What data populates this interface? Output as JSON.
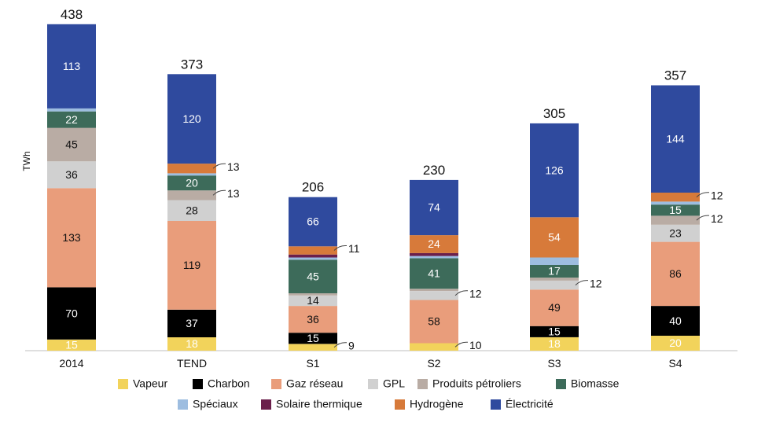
{
  "chart_data": {
    "type": "bar",
    "stacked": true,
    "ylabel": "TWh",
    "ylim": [
      0,
      450
    ],
    "grid": false,
    "legend_position": "bottom",
    "categories": [
      "2014",
      "TEND",
      "S1",
      "S2",
      "S3",
      "S4"
    ],
    "totals": [
      "438",
      "373",
      "206",
      "230",
      "305",
      "357"
    ],
    "series": [
      {
        "name": "Vapeur",
        "color": "#f2d35b",
        "text_color": "#ffffff",
        "values": [
          15,
          18,
          9,
          10,
          18,
          20
        ],
        "labels": [
          "15",
          "18",
          "9",
          "10",
          "18",
          "20"
        ]
      },
      {
        "name": "Charbon",
        "color": "#000000",
        "text_color": "#ffffff",
        "values": [
          70,
          37,
          15,
          0,
          15,
          40
        ],
        "labels": [
          "70",
          "37",
          "15",
          "",
          "15",
          "40"
        ]
      },
      {
        "name": "Gaz réseau",
        "color": "#e99d7b",
        "text_color": "#111111",
        "values": [
          133,
          119,
          36,
          58,
          49,
          86
        ],
        "labels": [
          "133",
          "119",
          "36",
          "58",
          "49",
          "86"
        ]
      },
      {
        "name": "GPL",
        "color": "#d0d0d0",
        "text_color": "#111111",
        "values": [
          36,
          28,
          14,
          12,
          12,
          23
        ],
        "labels": [
          "36",
          "28",
          "14",
          "12",
          "12",
          "23"
        ]
      },
      {
        "name": "Produits pétroliers",
        "color": "#b9aca4",
        "text_color": "#111111",
        "values": [
          45,
          13,
          3,
          3,
          4,
          12
        ],
        "labels": [
          "45",
          "13",
          "",
          "",
          "",
          "12"
        ]
      },
      {
        "name": "Biomasse",
        "color": "#3d6b5a",
        "text_color": "#ffffff",
        "values": [
          22,
          20,
          45,
          41,
          17,
          15
        ],
        "labels": [
          "22",
          "20",
          "45",
          "41",
          "17",
          "15"
        ]
      },
      {
        "name": "Spéciaux",
        "color": "#9dbde0",
        "text_color": "#111111",
        "values": [
          4,
          3,
          3,
          3,
          10,
          4
        ],
        "labels": [
          "",
          "",
          "",
          "",
          "",
          ""
        ]
      },
      {
        "name": "Solaire thermique",
        "color": "#6b1f4b",
        "text_color": "#ffffff",
        "values": [
          0,
          0,
          4,
          4,
          0,
          0
        ],
        "labels": [
          "",
          "",
          "",
          "",
          "",
          ""
        ]
      },
      {
        "name": "Hydrogène",
        "color": "#d77a3a",
        "text_color": "#ffffff",
        "values": [
          0,
          13,
          11,
          24,
          54,
          12
        ],
        "labels": [
          "",
          "13",
          "11",
          "24",
          "54",
          "12"
        ]
      },
      {
        "name": "Électricité",
        "color": "#2f4a9e",
        "text_color": "#ffffff",
        "values": [
          113,
          120,
          66,
          74,
          126,
          144
        ],
        "labels": [
          "113",
          "120",
          "66",
          "74",
          "126",
          "144"
        ]
      }
    ]
  }
}
